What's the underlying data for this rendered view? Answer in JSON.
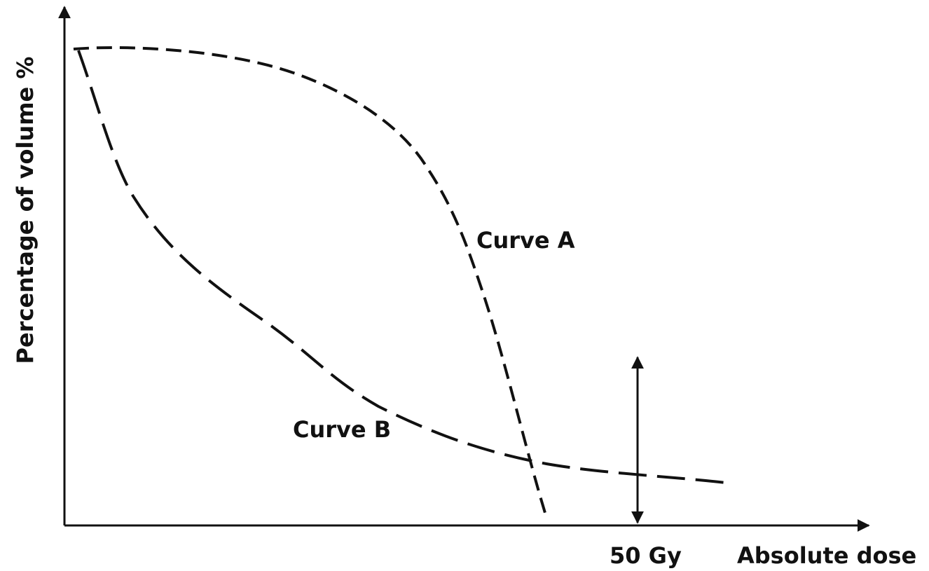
{
  "y_axis": {
    "label": "Percentage of volume %"
  },
  "x_axis": {
    "label": "Absolute dose"
  },
  "marker": {
    "label": "50 Gy"
  },
  "curves": [
    {
      "label": "Curve A"
    },
    {
      "label": "Curve B"
    }
  ]
}
